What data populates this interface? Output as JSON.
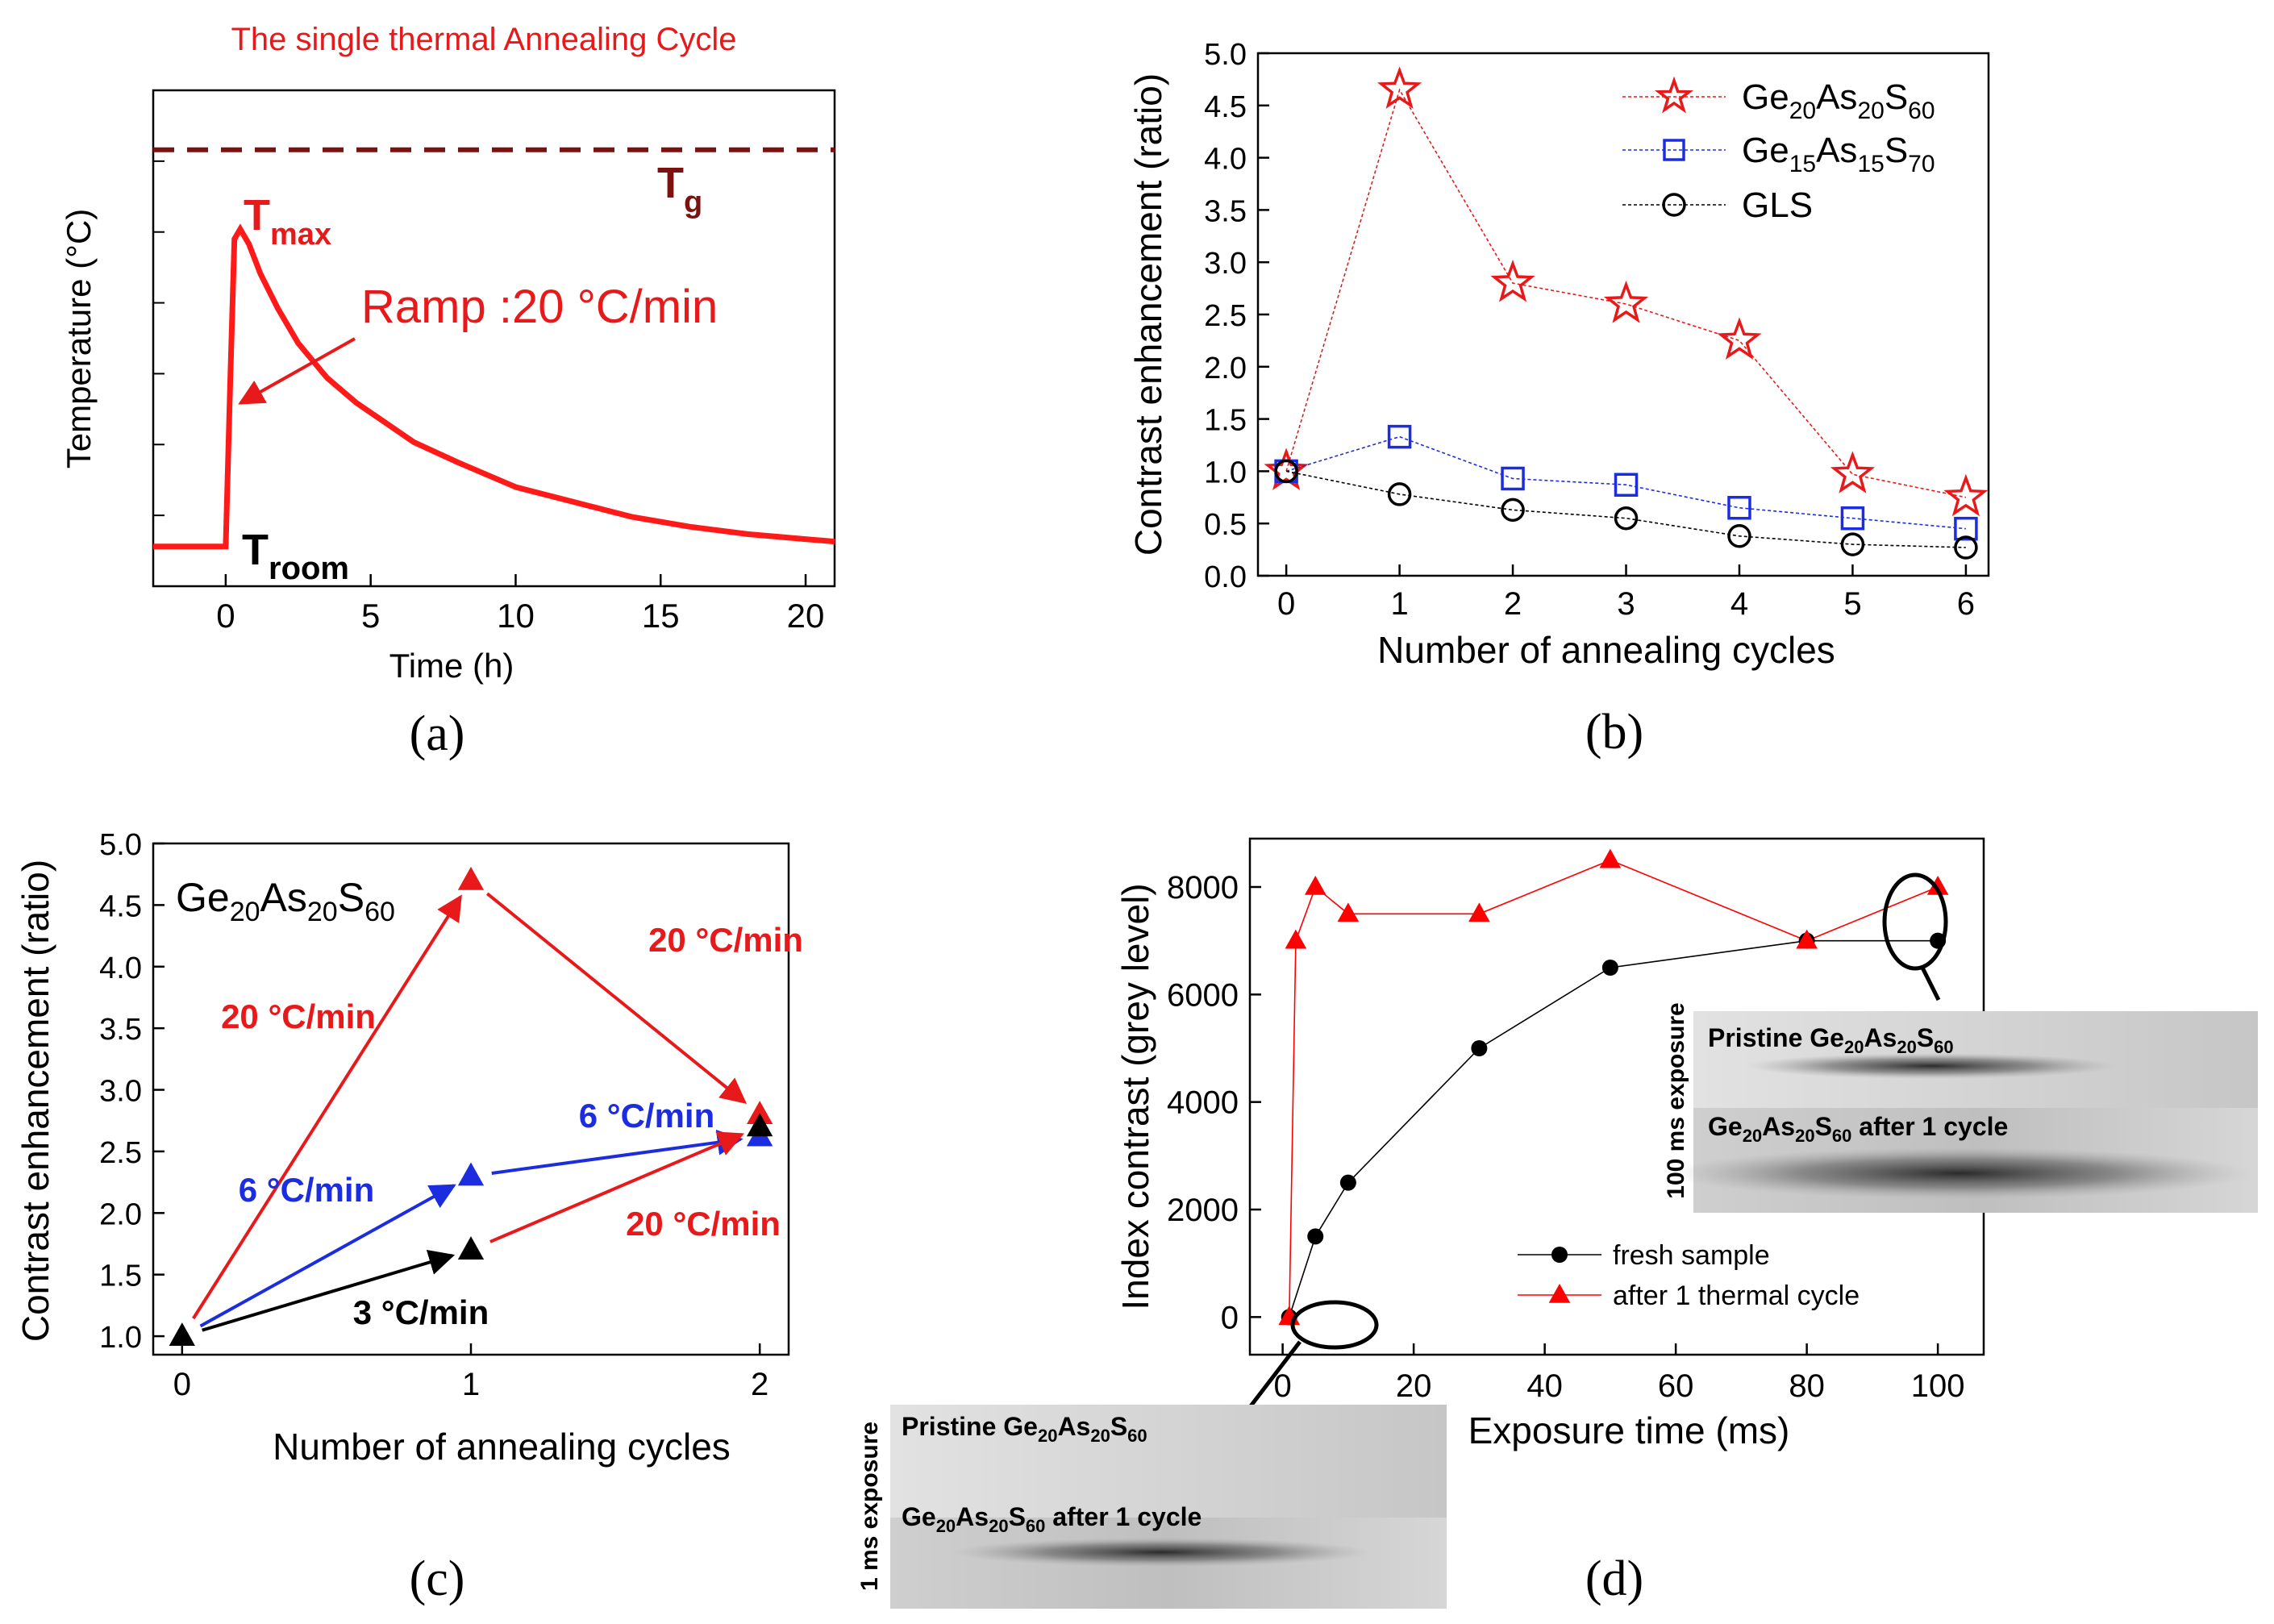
{
  "chart_data": [
    {
      "panel": "(a)",
      "type": "line",
      "title": "The single thermal Annealing Cycle",
      "xlabel": "Time (h)",
      "ylabel": "Temperature (°C)",
      "xlim": [
        -2.5,
        21
      ],
      "ylim": [
        0,
        100
      ],
      "xticks": [
        "0",
        "5",
        "10",
        "15",
        "20"
      ],
      "xtick_values": [
        0,
        5,
        10,
        15,
        20
      ],
      "tg_level": 88,
      "series": [
        {
          "name": "annealing cycle",
          "x": [
            -2.5,
            0,
            0.15,
            0.3,
            0.5,
            0.8,
            1.2,
            1.8,
            2.5,
            3.5,
            4.5,
            5.5,
            6.5,
            8,
            10,
            12,
            14,
            16,
            18,
            20,
            21
          ],
          "y": [
            8,
            8,
            40,
            70,
            72,
            69,
            63,
            56,
            49,
            42,
            37,
            33,
            29,
            25,
            20,
            17,
            14,
            12,
            10.5,
            9.5,
            9
          ]
        }
      ],
      "labels": {
        "tg": "T",
        "tg_sub": "g",
        "tmax": "T",
        "tmax_sub": "max",
        "troom": "T",
        "troom_sub": "room",
        "ramp": "Ramp :20 °C/min"
      },
      "panel_label": "(a)"
    },
    {
      "panel": "(b)",
      "type": "line",
      "xlabel": "Number of annealing cycles",
      "ylabel": "Contrast enhancement (ratio)",
      "xlim": [
        -0.25,
        6.2
      ],
      "ylim": [
        0,
        5
      ],
      "yticks": [
        "0.0",
        "0.5",
        "1.0",
        "1.5",
        "2.0",
        "2.5",
        "3.0",
        "3.5",
        "4.0",
        "4.5",
        "5.0"
      ],
      "ytick_values": [
        0,
        0.5,
        1,
        1.5,
        2,
        2.5,
        3,
        3.5,
        4,
        4.5,
        5
      ],
      "xticks": [
        "0",
        "1",
        "2",
        "3",
        "4",
        "5",
        "6"
      ],
      "xtick_values": [
        0,
        1,
        2,
        3,
        4,
        5,
        6
      ],
      "categories": [
        0,
        1,
        2,
        3,
        4,
        5,
        6
      ],
      "series": [
        {
          "name": "Ge20As20S60",
          "label_parts": [
            "Ge",
            "20",
            "As",
            "20",
            "S",
            "60"
          ],
          "marker": "star",
          "color": "#e8191a",
          "values": [
            1.0,
            4.65,
            2.8,
            2.6,
            2.25,
            0.97,
            0.75
          ]
        },
        {
          "name": "Ge15As15S70",
          "label_parts": [
            "Ge",
            "15",
            "As",
            "15",
            "S",
            "70"
          ],
          "marker": "square",
          "color": "#1c2de0",
          "values": [
            1.0,
            1.33,
            0.93,
            0.87,
            0.65,
            0.55,
            0.45
          ]
        },
        {
          "name": "GLS",
          "label_parts": [
            "GLS"
          ],
          "marker": "circle",
          "color": "#000000",
          "values": [
            1.0,
            0.78,
            0.63,
            0.55,
            0.38,
            0.3,
            0.27
          ]
        }
      ],
      "panel_label": "(b)"
    },
    {
      "panel": "(c)",
      "type": "scatter",
      "xlabel": "Number of annealing cycles",
      "ylabel": "Contrast enhancement (ratio)",
      "xlim": [
        -0.1,
        2.1
      ],
      "ylim": [
        0.85,
        5.0
      ],
      "yticks": [
        "1.0",
        "1.5",
        "2.0",
        "2.5",
        "3.0",
        "3.5",
        "4.0",
        "4.5",
        "5.0"
      ],
      "ytick_values": [
        1,
        1.5,
        2,
        2.5,
        3,
        3.5,
        4,
        4.5,
        5
      ],
      "xticks": [
        "0",
        "1",
        "2"
      ],
      "xtick_values": [
        0,
        1,
        2
      ],
      "inset_title_parts": [
        "Ge",
        "20",
        "As",
        "20",
        "S",
        "60"
      ],
      "points": [
        {
          "x": 0,
          "y": 1.0,
          "color": "#000000"
        },
        {
          "x": 1,
          "y": 4.7,
          "color": "#e8191a"
        },
        {
          "x": 1,
          "y": 2.3,
          "color": "#1c2de0"
        },
        {
          "x": 1,
          "y": 1.7,
          "color": "#000000"
        },
        {
          "x": 2,
          "y": 2.8,
          "color": "#e8191a"
        },
        {
          "x": 2,
          "y": 2.62,
          "color": "#1c2de0"
        },
        {
          "x": 2,
          "y": 2.7,
          "color": "#000000"
        }
      ],
      "arrows": [
        {
          "from": [
            0,
            1.0
          ],
          "to": [
            1,
            4.7
          ],
          "color": "#e8191a",
          "label": "20 °C/min"
        },
        {
          "from": [
            1,
            4.7
          ],
          "to": [
            2,
            2.8
          ],
          "color": "#e8191a",
          "label": "20 °C/min"
        },
        {
          "from": [
            0,
            1.0
          ],
          "to": [
            1,
            2.3
          ],
          "color": "#1c2de0",
          "label": "6 °C/min"
        },
        {
          "from": [
            1,
            2.3
          ],
          "to": [
            2,
            2.62
          ],
          "color": "#1c2de0",
          "label": "6 °C/min"
        },
        {
          "from": [
            0,
            1.0
          ],
          "to": [
            1,
            1.7
          ],
          "color": "#000000",
          "label": "3 °C/min"
        },
        {
          "from": [
            1,
            1.7
          ],
          "to": [
            2,
            2.7
          ],
          "color": "#e8191a",
          "label": "20 °C/min"
        }
      ],
      "panel_label": "(c)"
    },
    {
      "panel": "(d)",
      "type": "line",
      "xlabel": "Exposure time (ms)",
      "ylabel": "Index contrast (grey level)",
      "xlim": [
        -5,
        107
      ],
      "ylim": [
        -700,
        8900
      ],
      "yticks": [
        "0",
        "2000",
        "4000",
        "6000",
        "8000"
      ],
      "ytick_values": [
        0,
        2000,
        4000,
        6000,
        8000
      ],
      "xticks": [
        "0",
        "20",
        "40",
        "60",
        "80",
        "100"
      ],
      "xtick_values": [
        0,
        20,
        40,
        60,
        80,
        100
      ],
      "series": [
        {
          "name": "fresh sample",
          "marker": "circle",
          "color": "#000000",
          "x": [
            1,
            5,
            10,
            30,
            50,
            80,
            100
          ],
          "y": [
            0,
            1500,
            2500,
            5000,
            6500,
            7000,
            7000
          ]
        },
        {
          "name": "after 1 thermal cycle",
          "marker": "triangle",
          "color": "#ff0000",
          "x": [
            1,
            2,
            5,
            10,
            30,
            50,
            80,
            100
          ],
          "y": [
            0,
            7000,
            8000,
            7500,
            7500,
            8500,
            7000,
            8000
          ]
        }
      ],
      "inset_top": {
        "vertical_label": "100 ms exposure",
        "caption1_parts": [
          "Pristine Ge",
          "20",
          "As",
          "20",
          "S",
          "60"
        ],
        "caption2_parts": [
          "Ge",
          "20",
          "As",
          "20",
          "S",
          "60",
          " after 1 cycle"
        ]
      },
      "inset_bottom": {
        "vertical_label": "1 ms exposure",
        "caption1_parts": [
          "Pristine Ge",
          "20",
          "As",
          "20",
          "S",
          "60"
        ],
        "caption2_parts": [
          "Ge",
          "20",
          "As",
          "20",
          "S",
          "60",
          " after 1 cycle"
        ]
      },
      "panel_label": "(d)"
    }
  ]
}
